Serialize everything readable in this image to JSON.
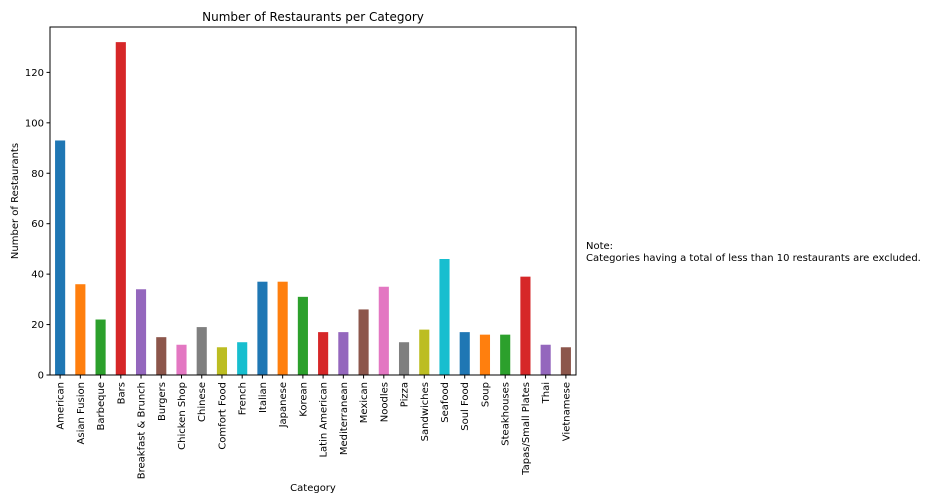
{
  "chart_data": {
    "type": "bar",
    "title": "Number of Restaurants per Category",
    "xlabel": "Category",
    "ylabel": "Number of Restaurants",
    "ylim": [
      0,
      138
    ],
    "yticks": [
      0,
      20,
      40,
      60,
      80,
      100,
      120
    ],
    "grid": false,
    "categories": [
      "American",
      "Asian Fusion",
      "Barbeque",
      "Bars",
      "Breakfast & Brunch",
      "Burgers",
      "Chicken Shop",
      "Chinese",
      "Comfort Food",
      "French",
      "Italian",
      "Japanese",
      "Korean",
      "Latin American",
      "Mediterranean",
      "Mexican",
      "Noodles",
      "Pizza",
      "Sandwiches",
      "Seafood",
      "Soul Food",
      "Soup",
      "Steakhouses",
      "Tapas/Small Plates",
      "Thai",
      "Vietnamese"
    ],
    "values": [
      93,
      36,
      22,
      132,
      34,
      15,
      12,
      19,
      11,
      13,
      37,
      37,
      31,
      17,
      17,
      26,
      35,
      13,
      18,
      46,
      17,
      16,
      16,
      39,
      12,
      11
    ],
    "colors": [
      "#1f77b4",
      "#ff7f0e",
      "#2ca02c",
      "#d62728",
      "#9467bd",
      "#8c564b",
      "#e377c2",
      "#7f7f7f",
      "#bcbd22",
      "#17becf"
    ]
  },
  "note": {
    "line1": "Note:",
    "line2": "Categories having a total of less than 10 restaurants are excluded."
  }
}
